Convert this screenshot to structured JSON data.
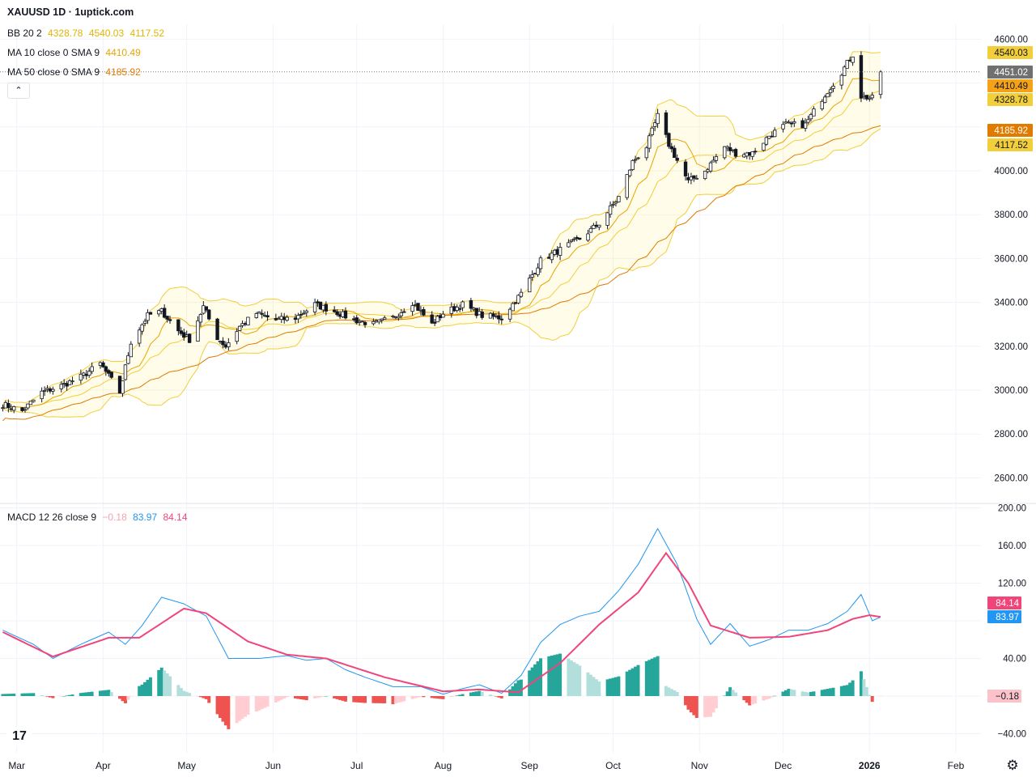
{
  "header": {
    "title": "XAUUSD 1D · 1uptick.com"
  },
  "legend": {
    "bb": {
      "label": "BB 20 2",
      "values": [
        "4328.78",
        "4540.03",
        "4117.52"
      ],
      "color": "#e0b400"
    },
    "ma10": {
      "label": "MA 10 close 0 SMA 9",
      "value": "4410.49",
      "color": "#e8a400"
    },
    "ma50": {
      "label": "MA 50 close 0 SMA 9",
      "value": "4185.92",
      "color": "#e07b00"
    },
    "macd": {
      "label": "MACD 12 26 close 9",
      "values": [
        "−0.18",
        "83.97",
        "84.14"
      ],
      "colors": [
        "#f5a3ab",
        "#2196f3",
        "#f0457a"
      ]
    },
    "collapse_icon": "chevron-up"
  },
  "price_axis": {
    "ticks": [
      "4600.00",
      "4000.00",
      "3800.00",
      "3600.00",
      "3400.00",
      "3200.00",
      "3000.00",
      "2800.00",
      "2600.00"
    ],
    "badges": [
      {
        "text": "4540.03",
        "bg": "#f2ce3b",
        "fg": "#131722"
      },
      {
        "text": "4451.02",
        "bg": "#707070",
        "fg": "#ffffff"
      },
      {
        "text": "4410.49",
        "bg": "#f5a21b",
        "fg": "#131722"
      },
      {
        "text": "4328.78",
        "bg": "#f2ce3b",
        "fg": "#131722"
      },
      {
        "text": "4185.92",
        "bg": "#e07b00",
        "fg": "#ffffff"
      },
      {
        "text": "4117.52",
        "bg": "#f2ce3b",
        "fg": "#131722"
      }
    ]
  },
  "macd_axis": {
    "ticks": [
      "200.00",
      "160.00",
      "120.00",
      "40.00",
      "−40.00"
    ],
    "badges": [
      {
        "text": "84.14",
        "bg": "#f0457a",
        "fg": "#ffffff"
      },
      {
        "text": "83.97",
        "bg": "#2196f3",
        "fg": "#ffffff"
      },
      {
        "text": "−0.18",
        "bg": "#fbc3c9",
        "fg": "#131722"
      }
    ]
  },
  "time_axis": {
    "labels": [
      "Mar",
      "Apr",
      "May",
      "Jun",
      "Jul",
      "Aug",
      "Sep",
      "Oct",
      "Nov",
      "Dec",
      "2026",
      "Feb"
    ]
  },
  "icons": {
    "logo": "tradingview-logo",
    "settings": "gear-icon"
  },
  "chart_data": [
    {
      "type": "candlestick",
      "symbol": "XAUUSD",
      "interval": "1D",
      "ylim": [
        2600,
        4600
      ],
      "x_range": [
        "2025-02-23",
        "2026-02-10"
      ],
      "last_price": 4451.02,
      "close_anchors": [
        {
          "date": "2025-02-24",
          "close": 2935
        },
        {
          "date": "2025-03-03",
          "close": 2905
        },
        {
          "date": "2025-03-10",
          "close": 2990
        },
        {
          "date": "2025-03-17",
          "close": 3020
        },
        {
          "date": "2025-03-24",
          "close": 3060
        },
        {
          "date": "2025-03-31",
          "close": 3120
        },
        {
          "date": "2025-04-07",
          "close": 2990
        },
        {
          "date": "2025-04-11",
          "close": 3220
        },
        {
          "date": "2025-04-17",
          "close": 3340
        },
        {
          "date": "2025-04-22",
          "close": 3360
        },
        {
          "date": "2025-04-28",
          "close": 3270
        },
        {
          "date": "2025-05-02",
          "close": 3230
        },
        {
          "date": "2025-05-07",
          "close": 3380
        },
        {
          "date": "2025-05-12",
          "close": 3240
        },
        {
          "date": "2025-05-15",
          "close": 3200
        },
        {
          "date": "2025-05-20",
          "close": 3290
        },
        {
          "date": "2025-05-26",
          "close": 3350
        },
        {
          "date": "2025-06-02",
          "close": 3320
        },
        {
          "date": "2025-06-09",
          "close": 3330
        },
        {
          "date": "2025-06-16",
          "close": 3390
        },
        {
          "date": "2025-06-23",
          "close": 3360
        },
        {
          "date": "2025-06-30",
          "close": 3320
        },
        {
          "date": "2025-07-07",
          "close": 3300
        },
        {
          "date": "2025-07-14",
          "close": 3330
        },
        {
          "date": "2025-07-21",
          "close": 3400
        },
        {
          "date": "2025-07-28",
          "close": 3300
        },
        {
          "date": "2025-08-01",
          "close": 3350
        },
        {
          "date": "2025-08-08",
          "close": 3390
        },
        {
          "date": "2025-08-15",
          "close": 3340
        },
        {
          "date": "2025-08-22",
          "close": 3330
        },
        {
          "date": "2025-08-29",
          "close": 3440
        },
        {
          "date": "2025-09-05",
          "close": 3590
        },
        {
          "date": "2025-09-12",
          "close": 3640
        },
        {
          "date": "2025-09-19",
          "close": 3690
        },
        {
          "date": "2025-09-26",
          "close": 3760
        },
        {
          "date": "2025-10-03",
          "close": 3880
        },
        {
          "date": "2025-10-08",
          "close": 4040
        },
        {
          "date": "2025-10-13",
          "close": 4110
        },
        {
          "date": "2025-10-17",
          "close": 4250
        },
        {
          "date": "2025-10-21",
          "close": 4120
        },
        {
          "date": "2025-10-28",
          "close": 3950
        },
        {
          "date": "2025-11-03",
          "close": 4000
        },
        {
          "date": "2025-11-10",
          "close": 4110
        },
        {
          "date": "2025-11-14",
          "close": 4080
        },
        {
          "date": "2025-11-20",
          "close": 4080
        },
        {
          "date": "2025-11-26",
          "close": 4160
        },
        {
          "date": "2025-12-02",
          "close": 4210
        },
        {
          "date": "2025-12-09",
          "close": 4210
        },
        {
          "date": "2025-12-15",
          "close": 4330
        },
        {
          "date": "2025-12-22",
          "close": 4450
        },
        {
          "date": "2025-12-26",
          "close": 4530
        },
        {
          "date": "2025-12-29",
          "close": 4340
        },
        {
          "date": "2026-01-02",
          "close": 4330
        },
        {
          "date": "2026-01-05",
          "close": 4451.02
        }
      ],
      "indicators": {
        "bollinger_bands": {
          "period": 20,
          "stddev": 2,
          "basis": 4328.78,
          "upper": 4540.03,
          "lower": 4117.52
        },
        "ma10": {
          "period": 10,
          "value": 4410.49
        },
        "ma50": {
          "period": 50,
          "value": 4185.92
        }
      }
    },
    {
      "type": "macd",
      "params": [
        12,
        26,
        9
      ],
      "ylim": [
        -40,
        200
      ],
      "last": {
        "histogram": -0.18,
        "macd": 83.97,
        "signal": 84.14
      },
      "macd_anchors": [
        {
          "date": "2025-02-24",
          "value": 70
        },
        {
          "date": "2025-03-07",
          "value": 55
        },
        {
          "date": "2025-03-14",
          "value": 40
        },
        {
          "date": "2025-03-24",
          "value": 55
        },
        {
          "date": "2025-04-03",
          "value": 68
        },
        {
          "date": "2025-04-09",
          "value": 55
        },
        {
          "date": "2025-04-15",
          "value": 75
        },
        {
          "date": "2025-04-22",
          "value": 105
        },
        {
          "date": "2025-04-30",
          "value": 98
        },
        {
          "date": "2025-05-08",
          "value": 85
        },
        {
          "date": "2025-05-16",
          "value": 40
        },
        {
          "date": "2025-05-27",
          "value": 40
        },
        {
          "date": "2025-06-06",
          "value": 43
        },
        {
          "date": "2025-06-13",
          "value": 38
        },
        {
          "date": "2025-06-20",
          "value": 40
        },
        {
          "date": "2025-06-27",
          "value": 28
        },
        {
          "date": "2025-07-04",
          "value": 20
        },
        {
          "date": "2025-07-14",
          "value": 10
        },
        {
          "date": "2025-07-24",
          "value": 10
        },
        {
          "date": "2025-08-01",
          "value": 2
        },
        {
          "date": "2025-08-08",
          "value": 8
        },
        {
          "date": "2025-08-14",
          "value": 12
        },
        {
          "date": "2025-08-22",
          "value": 3
        },
        {
          "date": "2025-08-29",
          "value": 22
        },
        {
          "date": "2025-09-05",
          "value": 57
        },
        {
          "date": "2025-09-12",
          "value": 76
        },
        {
          "date": "2025-09-19",
          "value": 85
        },
        {
          "date": "2025-09-26",
          "value": 90
        },
        {
          "date": "2025-10-03",
          "value": 112
        },
        {
          "date": "2025-10-10",
          "value": 140
        },
        {
          "date": "2025-10-17",
          "value": 178
        },
        {
          "date": "2025-10-24",
          "value": 140
        },
        {
          "date": "2025-10-31",
          "value": 82
        },
        {
          "date": "2025-11-05",
          "value": 55
        },
        {
          "date": "2025-11-12",
          "value": 77
        },
        {
          "date": "2025-11-19",
          "value": 53
        },
        {
          "date": "2025-11-26",
          "value": 60
        },
        {
          "date": "2025-12-03",
          "value": 70
        },
        {
          "date": "2025-12-10",
          "value": 70
        },
        {
          "date": "2025-12-17",
          "value": 77
        },
        {
          "date": "2025-12-24",
          "value": 90
        },
        {
          "date": "2025-12-29",
          "value": 108
        },
        {
          "date": "2026-01-02",
          "value": 80
        },
        {
          "date": "2026-01-05",
          "value": 83.97
        }
      ],
      "signal_anchors": [
        {
          "date": "2025-02-24",
          "value": 68
        },
        {
          "date": "2025-03-14",
          "value": 42
        },
        {
          "date": "2025-04-03",
          "value": 62
        },
        {
          "date": "2025-04-14",
          "value": 62
        },
        {
          "date": "2025-04-30",
          "value": 93
        },
        {
          "date": "2025-05-08",
          "value": 88
        },
        {
          "date": "2025-05-23",
          "value": 58
        },
        {
          "date": "2025-06-06",
          "value": 44
        },
        {
          "date": "2025-06-20",
          "value": 40
        },
        {
          "date": "2025-07-11",
          "value": 20
        },
        {
          "date": "2025-08-01",
          "value": 5
        },
        {
          "date": "2025-08-14",
          "value": 7
        },
        {
          "date": "2025-08-28",
          "value": 4
        },
        {
          "date": "2025-09-12",
          "value": 35
        },
        {
          "date": "2025-09-26",
          "value": 76
        },
        {
          "date": "2025-10-10",
          "value": 110
        },
        {
          "date": "2025-10-20",
          "value": 152
        },
        {
          "date": "2025-10-28",
          "value": 120
        },
        {
          "date": "2025-11-05",
          "value": 75
        },
        {
          "date": "2025-11-19",
          "value": 62
        },
        {
          "date": "2025-12-03",
          "value": 63
        },
        {
          "date": "2025-12-17",
          "value": 70
        },
        {
          "date": "2025-12-26",
          "value": 82
        },
        {
          "date": "2026-01-01",
          "value": 86
        },
        {
          "date": "2026-01-05",
          "value": 84.14
        }
      ]
    }
  ]
}
